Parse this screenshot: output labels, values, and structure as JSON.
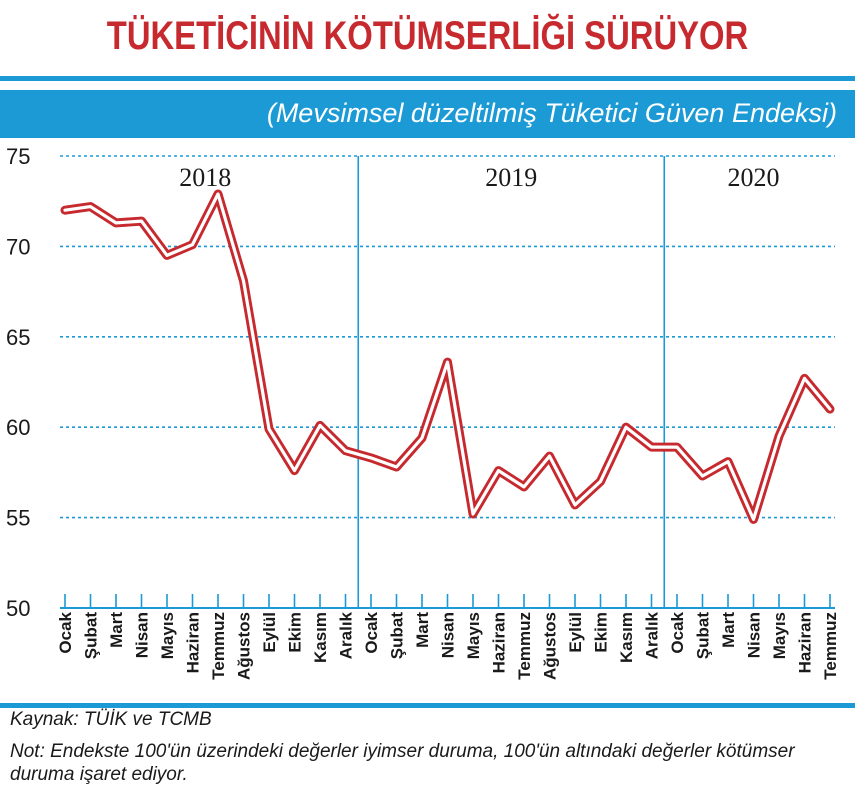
{
  "header": {
    "title": "TÜKETİCİNİN KÖTÜMSERLİĞİ SÜRÜYOR",
    "subtitle": "(Mevsimsel düzeltilmiş Tüketici Güven Endeksi)"
  },
  "footer": {
    "source": "Kaynak: TÜİK ve TCMB",
    "note": "Not: Endekste 100'ün üzerindeki değerler iyimser duruma, 100'ün altındaki değerler kötümser duruma işaret ediyor."
  },
  "colors": {
    "accent": "#1b9ad6",
    "title": "#c62a2f",
    "line_outer": "#c62a2f",
    "line_inner": "#ffffff"
  },
  "chart_data": {
    "type": "line",
    "title": "",
    "xlabel": "",
    "ylabel": "",
    "ylim": [
      50,
      75
    ],
    "yticks": [
      50,
      55,
      60,
      65,
      70,
      75
    ],
    "grid": "horizontal dashed",
    "years": [
      {
        "label": "2018",
        "start": 0,
        "count": 12
      },
      {
        "label": "2019",
        "start": 12,
        "count": 12
      },
      {
        "label": "2020",
        "start": 24,
        "count": 7
      }
    ],
    "categories": [
      "Ocak",
      "Şubat",
      "Mart",
      "Nisan",
      "Mayıs",
      "Haziran",
      "Temmuz",
      "Ağustos",
      "Eylül",
      "Ekim",
      "Kasım",
      "Aralık",
      "Ocak",
      "Şubat",
      "Mart",
      "Nisan",
      "Mayıs",
      "Haziran",
      "Temmuz",
      "Ağustos",
      "Eylül",
      "Ekim",
      "Kasım",
      "Aralık",
      "Ocak",
      "Şubat",
      "Mart",
      "Nisan",
      "Mayıs",
      "Haziran",
      "Temmuz"
    ],
    "series": [
      {
        "values": [
          72.0,
          72.2,
          71.3,
          71.4,
          69.5,
          70.1,
          72.9,
          68.1,
          59.9,
          57.6,
          60.1,
          58.7,
          58.3,
          57.8,
          59.4,
          63.6,
          55.2,
          57.6,
          56.7,
          58.4,
          55.7,
          57.0,
          60.0,
          58.9,
          58.9,
          57.3,
          58.1,
          54.9,
          59.5,
          62.7,
          61.0
        ]
      }
    ]
  }
}
